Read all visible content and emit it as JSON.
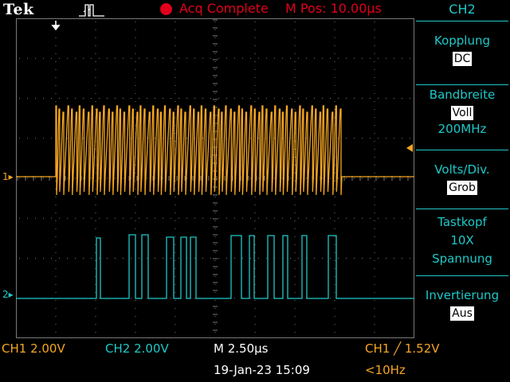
{
  "header": {
    "brand": "Tek",
    "trigger_icon": "pulse-trigger-icon",
    "acq_status": "Acq Complete",
    "m_pos": "M Pos: 10.00µs"
  },
  "side_menu": {
    "title": "CH2",
    "coupling_label": "Kopplung",
    "coupling_value": "DC",
    "bandwidth_label": "Bandbreite",
    "bandwidth_value": "Voll",
    "bandwidth_freq": "200MHz",
    "volts_label": "Volts/Div.",
    "volts_value": "Grob",
    "probe_label": "Tastkopf",
    "probe_attn": "10X",
    "probe_type": "Spannung",
    "invert_label": "Invertierung",
    "invert_value": "Aus"
  },
  "markers": {
    "ch1": "1",
    "ch2": "2"
  },
  "footer": {
    "ch1_scale": "CH1  2.00V",
    "ch2_scale": "CH2  2.00V",
    "timebase": "M 2.50µs",
    "trigger": "CH1 ╱ 1.52V",
    "date": "19-Jan-23 15:09",
    "freq": "<10Hz"
  },
  "colors": {
    "ch1": "#f5a623",
    "ch2": "#1fc8c8",
    "status": "#e3001b",
    "grid": "#7a7a7a"
  }
}
